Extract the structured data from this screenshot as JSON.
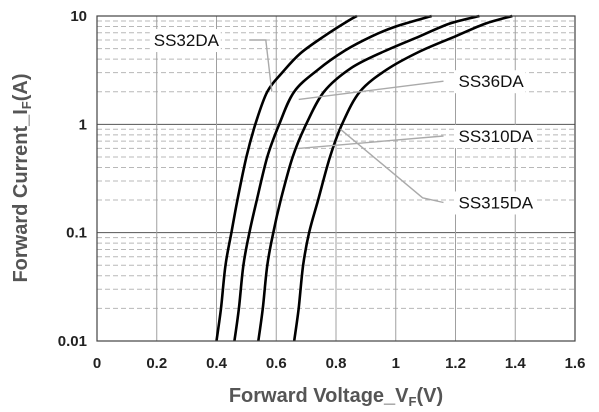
{
  "chart_data": {
    "type": "line",
    "xlabel": {
      "main": "Forward Voltage_V",
      "sub": "F",
      "unit": "(V)"
    },
    "ylabel": {
      "main": "Forward Current_I",
      "sub": "F",
      "unit": "(A)"
    },
    "xlim": [
      0,
      1.6
    ],
    "ylim": [
      0.01,
      10
    ],
    "y_scale": "log",
    "grid": true,
    "x_ticks": [
      0,
      0.2,
      0.4,
      0.6,
      0.8,
      1.0,
      1.2,
      1.4,
      1.6
    ],
    "x_tick_labels": [
      "0",
      "0.2",
      "0.4",
      "0.6",
      "0.8",
      "1",
      "1.2",
      "1.4",
      "1.6"
    ],
    "y_ticks": [
      0.01,
      0.1,
      1,
      10
    ],
    "y_tick_labels": [
      "0.01",
      "0.1",
      "1",
      "10"
    ],
    "series": [
      {
        "name": "SS32DA",
        "x": [
          0.4,
          0.415,
          0.43,
          0.45,
          0.47,
          0.5,
          0.53,
          0.57,
          0.62,
          0.68,
          0.76,
          0.84,
          0.87
        ],
        "y": [
          0.01,
          0.02,
          0.05,
          0.1,
          0.2,
          0.5,
          1,
          2,
          3,
          4.5,
          6.5,
          9,
          10
        ]
      },
      {
        "name": "SS36DA",
        "x": [
          0.46,
          0.475,
          0.49,
          0.51,
          0.535,
          0.57,
          0.61,
          0.66,
          0.74,
          0.83,
          0.92,
          1.0,
          1.12
        ],
        "y": [
          0.01,
          0.02,
          0.05,
          0.1,
          0.2,
          0.5,
          1,
          2,
          3.2,
          4.8,
          6.5,
          8,
          10
        ]
      },
      {
        "name": "SS310DA",
        "x": [
          0.54,
          0.555,
          0.57,
          0.59,
          0.615,
          0.655,
          0.7,
          0.76,
          0.85,
          0.96,
          1.08,
          1.18,
          1.28
        ],
        "y": [
          0.01,
          0.02,
          0.05,
          0.1,
          0.2,
          0.5,
          1,
          2,
          3.3,
          4.7,
          6.5,
          8.5,
          10
        ]
      },
      {
        "name": "SS315DA",
        "x": [
          0.66,
          0.675,
          0.69,
          0.71,
          0.74,
          0.78,
          0.82,
          0.88,
          0.97,
          1.08,
          1.2,
          1.3,
          1.39
        ],
        "y": [
          0.01,
          0.02,
          0.05,
          0.1,
          0.2,
          0.5,
          1,
          2,
          3.2,
          4.7,
          6.5,
          8.5,
          10
        ]
      }
    ]
  }
}
